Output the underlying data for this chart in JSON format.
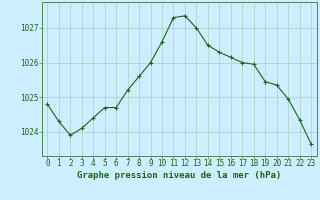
{
  "x": [
    0,
    1,
    2,
    3,
    4,
    5,
    6,
    7,
    8,
    9,
    10,
    11,
    12,
    13,
    14,
    15,
    16,
    17,
    18,
    19,
    20,
    21,
    22,
    23
  ],
  "y": [
    1024.8,
    1024.3,
    1023.9,
    1024.1,
    1024.4,
    1024.7,
    1024.7,
    1025.2,
    1025.6,
    1026.0,
    1026.6,
    1027.3,
    1027.35,
    1027.0,
    1026.5,
    1026.3,
    1026.15,
    1026.0,
    1025.95,
    1025.45,
    1025.35,
    1024.95,
    1024.35,
    1023.65
  ],
  "line_color": "#1a6618",
  "marker": "+",
  "marker_size": 3.5,
  "bg_color": "#cceeff",
  "grid_color": "#aacfbf",
  "border_color": "#4a8a4a",
  "xlabel": "Graphe pression niveau de la mer (hPa)",
  "xlabel_fontsize": 6.5,
  "tick_fontsize": 5.5,
  "ytick_labels": [
    "1024",
    "1025",
    "1026",
    "1027"
  ],
  "ytick_values": [
    1024,
    1025,
    1026,
    1027
  ],
  "ylim": [
    1023.3,
    1027.75
  ],
  "xlim": [
    -0.5,
    23.5
  ],
  "xtick_labels": [
    "0",
    "1",
    "2",
    "3",
    "4",
    "5",
    "6",
    "7",
    "8",
    "9",
    "10",
    "11",
    "12",
    "13",
    "14",
    "15",
    "16",
    "17",
    "18",
    "19",
    "20",
    "21",
    "22",
    "23"
  ]
}
